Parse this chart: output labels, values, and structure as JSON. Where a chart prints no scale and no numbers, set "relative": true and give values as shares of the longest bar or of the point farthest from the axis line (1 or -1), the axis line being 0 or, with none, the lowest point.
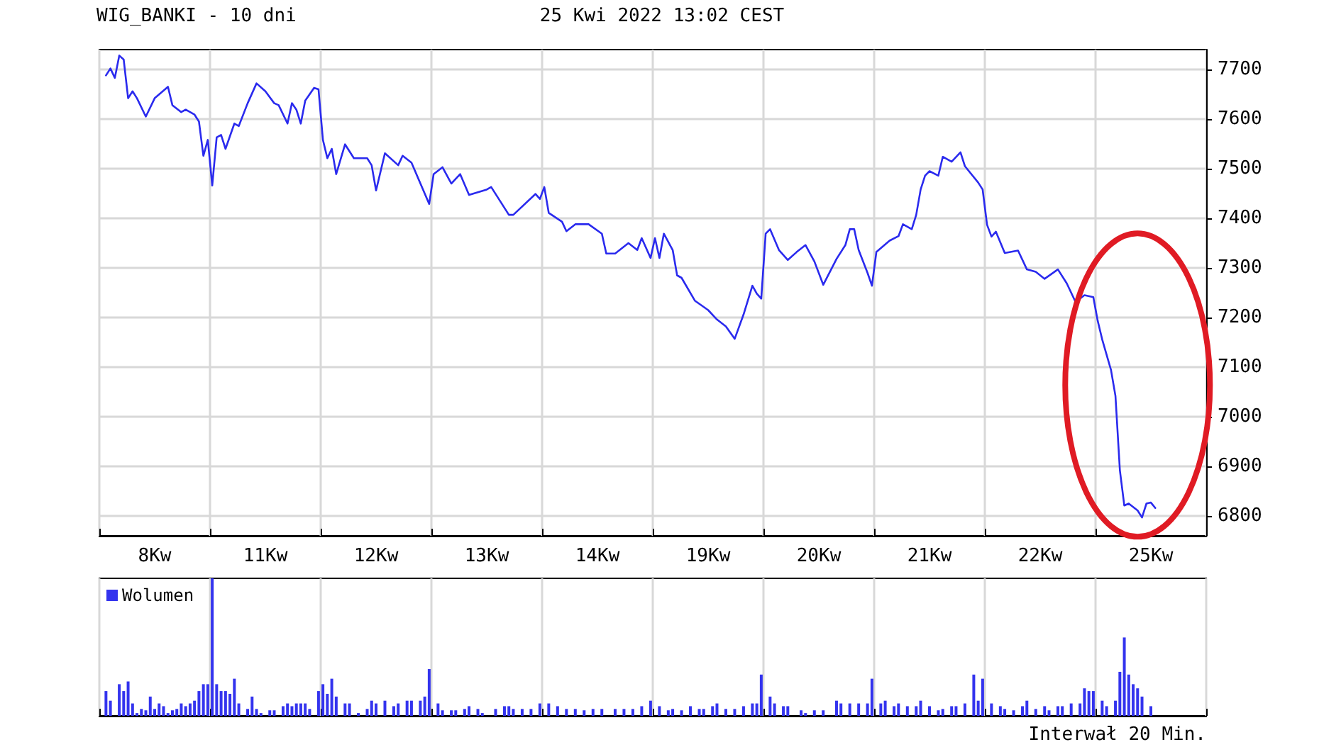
{
  "chart_data": [
    {
      "type": "line",
      "title": "WIG_BANKI - 10 dni",
      "subtitle": "25 Kwi 2022 13:02 CEST",
      "grid": true,
      "categories": [
        null,
        null,
        null,
        null,
        null,
        null,
        null,
        null,
        null,
        null,
        null,
        null,
        "8Kw",
        null,
        null,
        null,
        null,
        null,
        null,
        null,
        null,
        null,
        null,
        null,
        null,
        null,
        null,
        null,
        null,
        null,
        null,
        null,
        null,
        null,
        null,
        null,
        null,
        "11Kw",
        null,
        null,
        null,
        null,
        null,
        null,
        null,
        null,
        null,
        null,
        null,
        null,
        null,
        null,
        null,
        null,
        null,
        null,
        null,
        null,
        null,
        null,
        null,
        null,
        "12Kw",
        null,
        null,
        null,
        null,
        null,
        null,
        null,
        null,
        null,
        null,
        null,
        null,
        null,
        null,
        null,
        null,
        null,
        null,
        null,
        null,
        null,
        null,
        null,
        null,
        "13Kw",
        null,
        null,
        null,
        null,
        null,
        null,
        null,
        null,
        null,
        null,
        null,
        null,
        null,
        null,
        null,
        null,
        null,
        null,
        null,
        null,
        null,
        null,
        null,
        null,
        "14Kw",
        null,
        null,
        null,
        null,
        null,
        null,
        null,
        null,
        null,
        null,
        null,
        null,
        null,
        null,
        null,
        null,
        null,
        null,
        null,
        null,
        null,
        null,
        null,
        null,
        "19Kw",
        null,
        null,
        null,
        null,
        null,
        null,
        null,
        null,
        null,
        null,
        null,
        null,
        null,
        null,
        null,
        null,
        null,
        null,
        null,
        null,
        null,
        null,
        null,
        null,
        "20Kw",
        null,
        null,
        null,
        null,
        null,
        null,
        null,
        null,
        null,
        null,
        null,
        null,
        null,
        null,
        null,
        null,
        null,
        null,
        null,
        null,
        null,
        null,
        null,
        null,
        "21Kw",
        null,
        null,
        null,
        null,
        null,
        null,
        null,
        null,
        null,
        null,
        null,
        null,
        null,
        null,
        null,
        null,
        null,
        null,
        null,
        null,
        null,
        null,
        null,
        null,
        "22Kw",
        null,
        null,
        null,
        null,
        null,
        null,
        null,
        null,
        null,
        null,
        null,
        null,
        null,
        null,
        null,
        null,
        null,
        null,
        null,
        null,
        null,
        null,
        null,
        null,
        "25Kw",
        null,
        null,
        null,
        null,
        null,
        null,
        null,
        null,
        null,
        null,
        null,
        null
      ],
      "ylim": [
        6760,
        7740
      ],
      "yticks": [
        6800,
        6900,
        7000,
        7100,
        7200,
        7300,
        7400,
        7500,
        7600,
        7700
      ],
      "series": [
        {
          "color": "#2a2aee",
          "values": [
            null,
            7688,
            7702,
            7683,
            7728,
            7720,
            7642,
            7656,
            7642,
            null,
            7605,
            null,
            7642,
            null,
            null,
            7665,
            7628,
            null,
            7614,
            7619,
            null,
            7609,
            7595,
            7526,
            7558,
            7466,
            7563,
            7568,
            7540,
            null,
            7591,
            7586,
            null,
            7632,
            null,
            7672,
            null,
            7656,
            null,
            7632,
            7628,
            null,
            7591,
            7632,
            7619,
            7591,
            7637,
            null,
            7663,
            7660,
            7558,
            7521,
            7540,
            7489,
            null,
            7549,
            null,
            7521,
            null,
            null,
            7521,
            7507,
            7456,
            null,
            7531,
            null,
            null,
            7507,
            7526,
            null,
            7512,
            null,
            null,
            null,
            7429,
            7489,
            null,
            7503,
            null,
            7470,
            null,
            7489,
            null,
            7447,
            null,
            null,
            null,
            7458,
            7463,
            null,
            null,
            null,
            7407,
            7407,
            null,
            null,
            null,
            null,
            7449,
            7439,
            7463,
            7411,
            null,
            null,
            7393,
            7374,
            null,
            7388,
            null,
            null,
            7388,
            null,
            null,
            7369,
            7329,
            null,
            7329,
            null,
            null,
            7350,
            null,
            7336,
            7360,
            null,
            7320,
            7360,
            7320,
            7369,
            null,
            7336,
            7285,
            7280,
            null,
            null,
            7234,
            null,
            null,
            7215,
            null,
            7196,
            null,
            7182,
            null,
            7157,
            null,
            7206,
            null,
            7264,
            7248,
            7238,
            7369,
            7378,
            null,
            7336,
            null,
            7316,
            null,
            7332,
            null,
            7346,
            null,
            7313,
            null,
            7266,
            null,
            null,
            7318,
            null,
            7346,
            7378,
            7378,
            7336,
            null,
            7290,
            7264,
            7332,
            null,
            null,
            7355,
            null,
            7364,
            7388,
            null,
            7378,
            7407,
            7458,
            7486,
            7495,
            null,
            7486,
            7524,
            null,
            7514,
            null,
            7533,
            7505,
            null,
            null,
            7472,
            7458,
            7387,
            7363,
            7373,
            null,
            7330,
            null,
            null,
            7335,
            null,
            7297,
            null,
            7292,
            null,
            7278,
            null,
            null,
            7297,
            null,
            7269,
            null,
            7231,
            null,
            7245,
            null,
            7241,
            7193,
            7156,
            null,
            7094,
            7042,
            6892,
            6821,
            6825,
            null,
            6811,
            6797,
            6825,
            6827,
            6816,
            null,
            null,
            null,
            null,
            null,
            null,
            null,
            null,
            null,
            null,
            null
          ]
        }
      ]
    },
    {
      "type": "bar",
      "relative": true,
      "grid": "x",
      "legend": "top left",
      "categories": [
        null,
        null,
        null,
        null,
        null,
        null,
        null,
        null,
        null,
        null,
        null,
        null,
        null,
        null,
        null,
        null,
        null,
        null,
        null,
        null,
        null,
        null,
        null,
        null,
        null,
        null,
        null,
        null,
        null,
        null,
        null,
        null,
        null,
        null,
        null,
        null,
        null,
        null,
        null,
        null,
        null,
        null,
        null,
        null,
        null,
        null,
        null,
        null,
        null,
        null,
        null,
        null,
        null,
        null,
        null,
        null,
        null,
        null,
        null,
        null,
        null,
        null,
        null,
        null,
        null,
        null,
        null,
        null,
        null,
        null,
        null,
        null,
        null,
        null,
        null,
        null,
        null,
        null,
        null,
        null,
        null,
        null,
        null,
        null,
        null,
        null,
        null,
        null,
        null,
        null,
        null,
        null,
        null,
        null,
        null,
        null,
        null,
        null,
        null,
        null,
        null,
        null,
        null,
        null,
        null,
        null,
        null,
        null,
        null,
        null,
        null,
        null,
        null,
        null,
        null,
        null,
        null,
        null,
        null,
        null,
        null,
        null,
        null,
        null,
        null,
        null,
        null,
        null,
        null,
        null,
        null,
        null,
        null,
        null,
        null,
        null,
        null,
        null,
        null,
        null,
        null,
        null,
        null,
        null,
        null,
        null,
        null,
        null,
        null,
        null,
        null,
        null,
        null,
        null,
        null,
        null,
        null,
        null,
        null,
        null,
        null,
        null,
        null,
        null,
        null,
        null,
        null,
        null,
        null,
        null,
        null,
        null,
        null,
        null,
        null,
        null,
        null,
        null,
        null,
        null,
        null,
        null,
        null,
        null,
        null,
        null,
        null,
        null,
        null,
        null,
        null,
        null,
        null,
        null,
        null,
        null,
        null,
        null,
        null,
        null,
        null,
        null,
        null,
        null,
        null,
        null,
        null,
        null,
        null,
        null,
        null,
        null,
        null,
        null,
        null,
        null,
        null,
        null,
        null,
        null,
        null,
        null,
        null,
        null,
        null,
        null,
        null,
        null,
        null,
        null,
        null,
        null,
        null,
        null,
        null,
        null,
        null,
        null,
        null,
        null,
        null,
        null,
        null,
        null,
        null,
        null,
        null,
        null,
        null,
        null
      ],
      "annotations": [
        "Interwał 20 Min."
      ],
      "series": [
        {
          "name": "Wolumen",
          "color": "#3333ee",
          "values": [
            null,
            0.18,
            0.11,
            null,
            0.23,
            0.18,
            0.25,
            0.09,
            0.02,
            0.05,
            0.04,
            0.14,
            0.05,
            0.09,
            0.07,
            0.02,
            0.04,
            0.05,
            0.09,
            0.07,
            0.09,
            0.11,
            0.18,
            0.23,
            0.23,
            1,
            0.23,
            0.18,
            0.18,
            0.16,
            0.27,
            0.09,
            null,
            0.05,
            0.14,
            0.05,
            0.02,
            null,
            0.04,
            0.04,
            null,
            0.07,
            0.09,
            0.07,
            0.09,
            0.09,
            0.09,
            0.05,
            null,
            0.18,
            0.23,
            0.16,
            0.27,
            0.14,
            null,
            0.09,
            0.09,
            null,
            0.02,
            null,
            0.05,
            0.11,
            0.09,
            null,
            0.11,
            null,
            0.07,
            0.09,
            null,
            0.11,
            0.11,
            null,
            0.11,
            0.14,
            0.34,
            null,
            0.09,
            0.04,
            null,
            0.04,
            0.04,
            null,
            0.05,
            0.07,
            null,
            0.05,
            0.02,
            null,
            null,
            0.05,
            null,
            0.07,
            0.07,
            0.05,
            null,
            0.05,
            null,
            0.05,
            null,
            0.09,
            null,
            0.09,
            null,
            0.07,
            null,
            0.05,
            null,
            0.05,
            null,
            0.04,
            null,
            0.05,
            null,
            0.05,
            null,
            null,
            0.05,
            null,
            0.05,
            null,
            0.05,
            null,
            0.07,
            null,
            0.11,
            null,
            0.07,
            null,
            0.04,
            0.05,
            null,
            0.04,
            null,
            0.07,
            null,
            0.05,
            0.05,
            null,
            0.07,
            0.09,
            null,
            0.05,
            null,
            0.05,
            null,
            0.07,
            null,
            0.09,
            0.09,
            0.3,
            null,
            0.14,
            0.09,
            null,
            0.07,
            0.07,
            null,
            null,
            0.04,
            0.02,
            null,
            0.04,
            null,
            0.04,
            null,
            null,
            0.11,
            0.09,
            null,
            0.09,
            null,
            0.09,
            null,
            0.09,
            0.27,
            null,
            0.09,
            0.11,
            null,
            0.07,
            0.09,
            null,
            0.07,
            null,
            0.07,
            0.11,
            null,
            0.07,
            null,
            0.04,
            0.05,
            null,
            0.07,
            0.07,
            null,
            0.09,
            null,
            0.3,
            0.11,
            0.27,
            null,
            0.09,
            null,
            0.07,
            0.05,
            null,
            0.04,
            null,
            0.07,
            0.11,
            null,
            0.05,
            null,
            0.07,
            0.04,
            null,
            0.07,
            0.07,
            null,
            0.09,
            null,
            0.09,
            0.2,
            0.18,
            0.18,
            null,
            0.11,
            0.07,
            null,
            0.11,
            0.32,
            0.57,
            0.3,
            0.23,
            0.2,
            0.14,
            null,
            0.07,
            null,
            null,
            null,
            null,
            null,
            null,
            null,
            null,
            null,
            null,
            null,
            null
          ]
        }
      ]
    }
  ]
}
